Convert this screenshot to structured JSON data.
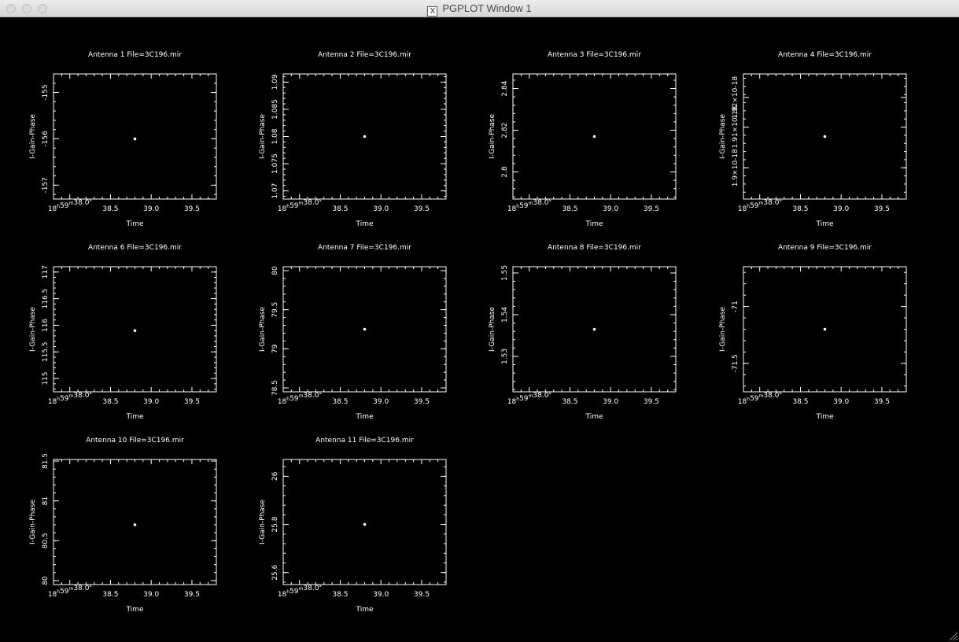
{
  "window": {
    "title": "PGPLOT Window 1",
    "title_icon": "x11-icon",
    "controls": [
      "close-button",
      "minimize-button",
      "zoom-button"
    ]
  },
  "colors": {
    "background": "#000000",
    "foreground": "#ffffff"
  },
  "chart_data": [
    {
      "type": "scatter",
      "title": "Antenna 1  File=3C196.mir",
      "xlabel": "Time",
      "ylabel": "I-Gain-Phase",
      "xlim": [
        37.8,
        39.8
      ],
      "xticks": [
        {
          "v": 38.0,
          "label": "18h59m38.0s"
        },
        {
          "v": 38.5,
          "label": "38.5"
        },
        {
          "v": 39.0,
          "label": "39.0"
        },
        {
          "v": 39.5,
          "label": "39.5"
        }
      ],
      "ylim": [
        -157.3,
        -154.6
      ],
      "yticks": [
        {
          "v": -155,
          "label": "-155"
        },
        {
          "v": -156,
          "label": "-156"
        },
        {
          "v": -157,
          "label": "-157"
        }
      ],
      "points": [
        {
          "x": 38.8,
          "y": -156.0
        }
      ]
    },
    {
      "type": "scatter",
      "title": "Antenna 2  File=3C196.mir",
      "xlabel": "Time",
      "ylabel": "I-Gain-Phase",
      "xlim": [
        37.8,
        39.8
      ],
      "xticks": [
        {
          "v": 38.0,
          "label": "18h59m38.0s"
        },
        {
          "v": 38.5,
          "label": "38.5"
        },
        {
          "v": 39.0,
          "label": "39.0"
        },
        {
          "v": 39.5,
          "label": "39.5"
        }
      ],
      "ylim": [
        1.0685,
        1.0915
      ],
      "yticks": [
        {
          "v": 1.07,
          "label": "1.07"
        },
        {
          "v": 1.075,
          "label": "1.075"
        },
        {
          "v": 1.08,
          "label": "1.08"
        },
        {
          "v": 1.085,
          "label": "1.085"
        },
        {
          "v": 1.09,
          "label": "1.09"
        }
      ],
      "points": [
        {
          "x": 38.8,
          "y": 1.08
        }
      ]
    },
    {
      "type": "scatter",
      "title": "Antenna 3  File=3C196.mir",
      "xlabel": "Time",
      "ylabel": "I-Gain-Phase",
      "xlim": [
        37.8,
        39.8
      ],
      "xticks": [
        {
          "v": 38.0,
          "label": "18h59m38.0s"
        },
        {
          "v": 38.5,
          "label": "38.5"
        },
        {
          "v": 39.0,
          "label": "39.0"
        },
        {
          "v": 39.5,
          "label": "39.5"
        }
      ],
      "ylim": [
        2.787,
        2.847
      ],
      "yticks": [
        {
          "v": 2.8,
          "label": "2.8"
        },
        {
          "v": 2.82,
          "label": "2.82"
        },
        {
          "v": 2.84,
          "label": "2.84"
        }
      ],
      "points": [
        {
          "x": 38.8,
          "y": 2.817
        }
      ]
    },
    {
      "type": "scatter",
      "title": "Antenna 4  File=3C196.mir",
      "xlabel": "Time",
      "ylabel": "I-Gain-Phase",
      "xlim": [
        37.8,
        39.8
      ],
      "xticks": [
        {
          "v": 38.0,
          "label": "18h59m38.0s"
        },
        {
          "v": 38.5,
          "label": "38.5"
        },
        {
          "v": 39.0,
          "label": "39.0"
        },
        {
          "v": 39.5,
          "label": "39.5"
        }
      ],
      "ylim": [
        0,
        8
      ],
      "yticks": [
        {
          "v": 2,
          "label": "1.9×10-18"
        },
        {
          "v": 4.6,
          "label": "1.91×10-18"
        },
        {
          "v": 6.5,
          "label": "1.92×10-18"
        }
      ],
      "points": [
        {
          "x": 38.8,
          "y": 4
        }
      ]
    },
    {
      "type": "scatter",
      "title": "Antenna 6  File=3C196.mir",
      "xlabel": "Time",
      "ylabel": "I-Gain-Phase",
      "xlim": [
        37.8,
        39.8
      ],
      "xticks": [
        {
          "v": 38.0,
          "label": "18h59m38.0s"
        },
        {
          "v": 38.5,
          "label": "38.5"
        },
        {
          "v": 39.0,
          "label": "39.0"
        },
        {
          "v": 39.5,
          "label": "39.5"
        }
      ],
      "ylim": [
        114.75,
        117.1
      ],
      "yticks": [
        {
          "v": 115,
          "label": "115"
        },
        {
          "v": 115.5,
          "label": "115.5"
        },
        {
          "v": 116,
          "label": "116"
        },
        {
          "v": 116.5,
          "label": "116.5"
        },
        {
          "v": 117,
          "label": "117"
        }
      ],
      "points": [
        {
          "x": 38.8,
          "y": 115.9
        }
      ]
    },
    {
      "type": "scatter",
      "title": "Antenna 7  File=3C196.mir",
      "xlabel": "Time",
      "ylabel": "I-Gain-Phase",
      "xlim": [
        37.8,
        39.8
      ],
      "xticks": [
        {
          "v": 38.0,
          "label": "18h59m38.0s"
        },
        {
          "v": 38.5,
          "label": "38.5"
        },
        {
          "v": 39.0,
          "label": "39.0"
        },
        {
          "v": 39.5,
          "label": "39.5"
        }
      ],
      "ylim": [
        78.45,
        80.05
      ],
      "yticks": [
        {
          "v": 78.5,
          "label": "78.5"
        },
        {
          "v": 79,
          "label": "79"
        },
        {
          "v": 79.5,
          "label": "79.5"
        },
        {
          "v": 80,
          "label": "80"
        }
      ],
      "points": [
        {
          "x": 38.8,
          "y": 79.25
        }
      ]
    },
    {
      "type": "scatter",
      "title": "Antenna 8  File=3C196.mir",
      "xlabel": "Time",
      "ylabel": "I-Gain-Phase",
      "xlim": [
        37.8,
        39.8
      ],
      "xticks": [
        {
          "v": 38.0,
          "label": "18h59m38.0s"
        },
        {
          "v": 38.5,
          "label": "38.5"
        },
        {
          "v": 39.0,
          "label": "39.0"
        },
        {
          "v": 39.5,
          "label": "39.5"
        }
      ],
      "ylim": [
        1.5215,
        1.5515
      ],
      "yticks": [
        {
          "v": 1.53,
          "label": "1.53"
        },
        {
          "v": 1.54,
          "label": "1.54"
        },
        {
          "v": 1.55,
          "label": "1.55"
        }
      ],
      "points": [
        {
          "x": 38.8,
          "y": 1.5365
        }
      ]
    },
    {
      "type": "scatter",
      "title": "Antenna 9  File=3C196.mir",
      "xlabel": "Time",
      "ylabel": "I-Gain-Phase",
      "xlim": [
        37.8,
        39.8
      ],
      "xticks": [
        {
          "v": 38.0,
          "label": "18h59m38.0s"
        },
        {
          "v": 38.5,
          "label": "38.5"
        },
        {
          "v": 39.0,
          "label": "39.0"
        },
        {
          "v": 39.5,
          "label": "39.5"
        }
      ],
      "ylim": [
        -71.75,
        -70.65
      ],
      "yticks": [
        {
          "v": -71,
          "label": "-71"
        },
        {
          "v": -71.5,
          "label": "-71.5"
        }
      ],
      "points": [
        {
          "x": 38.8,
          "y": -71.2
        }
      ]
    },
    {
      "type": "scatter",
      "title": "Antenna 10 File=3C196.mir",
      "xlabel": "Time",
      "ylabel": "I-Gain-Phase",
      "xlim": [
        37.8,
        39.8
      ],
      "xticks": [
        {
          "v": 38.0,
          "label": "18h59m38.0s"
        },
        {
          "v": 38.5,
          "label": "38.5"
        },
        {
          "v": 39.0,
          "label": "39.0"
        },
        {
          "v": 39.5,
          "label": "39.5"
        }
      ],
      "ylim": [
        79.95,
        81.52
      ],
      "yticks": [
        {
          "v": 80,
          "label": "80"
        },
        {
          "v": 80.5,
          "label": "80.5"
        },
        {
          "v": 81,
          "label": "81"
        },
        {
          "v": 81.5,
          "label": "81.5"
        }
      ],
      "points": [
        {
          "x": 38.8,
          "y": 80.7
        }
      ]
    },
    {
      "type": "scatter",
      "title": "Antenna 11 File=3C196.mir",
      "xlabel": "Time",
      "ylabel": "I-Gain-Phase",
      "xlim": [
        37.8,
        39.8
      ],
      "xticks": [
        {
          "v": 38.0,
          "label": "18h59m38.0s"
        },
        {
          "v": 38.5,
          "label": "38.5"
        },
        {
          "v": 39.0,
          "label": "39.0"
        },
        {
          "v": 39.5,
          "label": "39.5"
        }
      ],
      "ylim": [
        25.55,
        26.07
      ],
      "yticks": [
        {
          "v": 25.6,
          "label": "25.6"
        },
        {
          "v": 25.8,
          "label": "25.8"
        },
        {
          "v": 26,
          "label": "26"
        }
      ],
      "points": [
        {
          "x": 38.8,
          "y": 25.8
        }
      ]
    }
  ]
}
